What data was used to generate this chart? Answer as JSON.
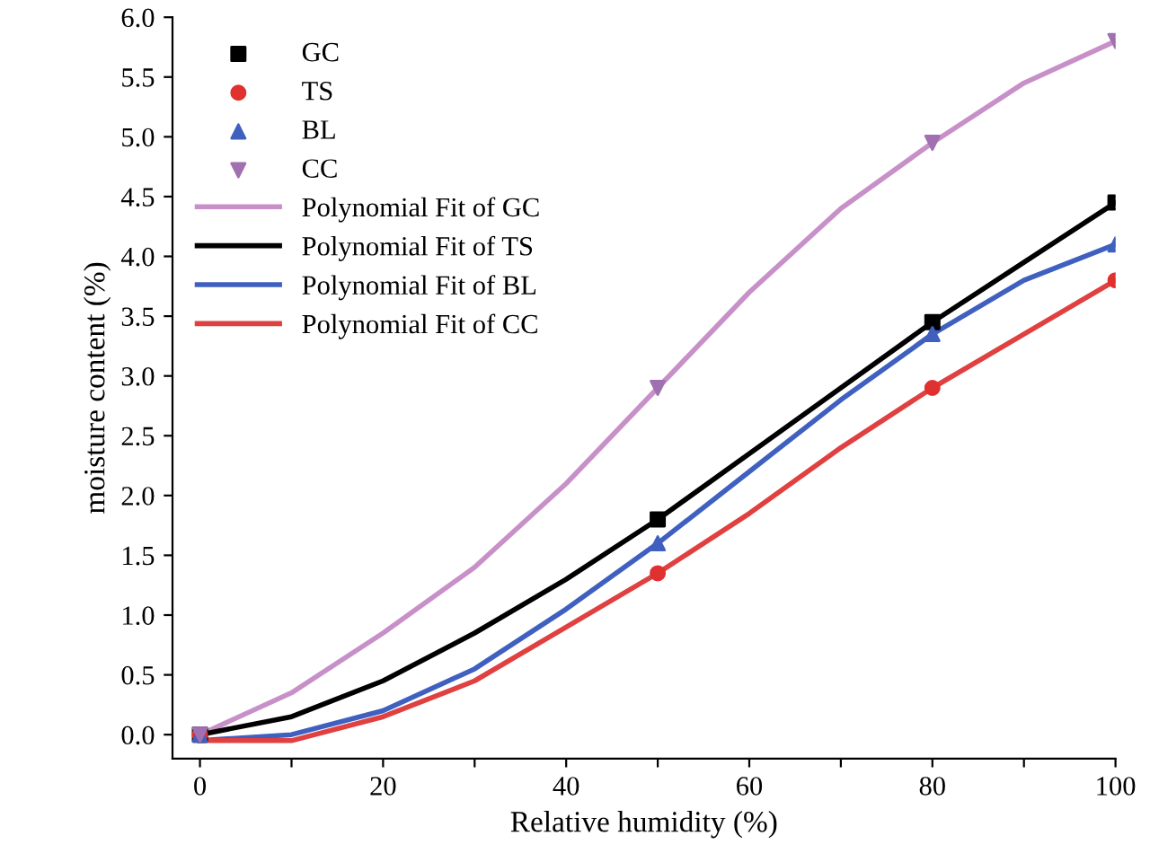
{
  "chart_data": {
    "type": "scatter",
    "xlabel": "Relative humidity (%)",
    "ylabel": "moisture content (%)",
    "xlim": [
      -3,
      100
    ],
    "ylim": [
      -0.2,
      6.0
    ],
    "xticks": [
      0,
      {
        "value": 10,
        "label": null
      },
      20,
      {
        "value": 30,
        "label": null
      },
      40,
      {
        "value": 50,
        "label": null
      },
      60,
      {
        "value": 70,
        "label": null
      },
      80,
      {
        "value": 90,
        "label": null
      },
      100
    ],
    "yticks": [
      {
        "value": 0,
        "label": "0.0"
      },
      {
        "value": 0.5,
        "label": "0.5"
      },
      {
        "value": 1,
        "label": "1.0"
      },
      {
        "value": 1.5,
        "label": "1.5"
      },
      {
        "value": 2,
        "label": "2.0"
      },
      {
        "value": 2.5,
        "label": "2.5"
      },
      {
        "value": 3,
        "label": "3.0"
      },
      {
        "value": 3.5,
        "label": "3.5"
      },
      {
        "value": 4,
        "label": "4.0"
      },
      {
        "value": 4.5,
        "label": "4.5"
      },
      {
        "value": 5,
        "label": "5.0"
      },
      {
        "value": 5.5,
        "label": "5.5"
      },
      {
        "value": 6,
        "label": "6.0"
      }
    ],
    "grid": false,
    "legend": "top left",
    "series": [
      {
        "name": "GC",
        "marker": "square",
        "color": "#000000",
        "x": [
          0,
          50,
          80,
          100
        ],
        "values": [
          0.0,
          1.8,
          3.45,
          4.45
        ]
      },
      {
        "name": "TS",
        "marker": "circle",
        "color": "#e03030",
        "x": [
          0,
          50,
          80,
          100
        ],
        "values": [
          0.0,
          1.35,
          2.9,
          3.8
        ]
      },
      {
        "name": "BL",
        "marker": "triangle",
        "color": "#4060c0",
        "x": [
          0,
          50,
          80,
          100
        ],
        "values": [
          0.0,
          1.6,
          3.35,
          4.1
        ]
      },
      {
        "name": "CC",
        "marker": "triangle_down",
        "color": "#a070b0",
        "x": [
          0,
          50,
          80,
          100
        ],
        "values": [
          0.0,
          2.9,
          4.95,
          5.8
        ]
      },
      {
        "name": "Polynomial Fit of GC",
        "type": "line",
        "color": "#c890c8",
        "x": [
          0,
          10,
          20,
          30,
          40,
          50,
          60,
          70,
          80,
          90,
          100
        ],
        "values": [
          0.0,
          0.35,
          0.85,
          1.4,
          2.1,
          2.9,
          3.7,
          4.4,
          4.95,
          5.45,
          5.8
        ]
      },
      {
        "name": "Polynomial Fit of TS",
        "type": "line",
        "color": "#000000",
        "x": [
          0,
          10,
          20,
          30,
          40,
          50,
          60,
          70,
          80,
          90,
          100
        ],
        "values": [
          0.0,
          0.15,
          0.45,
          0.85,
          1.3,
          1.8,
          2.35,
          2.9,
          3.45,
          3.95,
          4.45
        ]
      },
      {
        "name": "Polynomial Fit of BL",
        "type": "line",
        "color": "#4060c0",
        "x": [
          0,
          10,
          20,
          30,
          40,
          50,
          60,
          70,
          80,
          90,
          100
        ],
        "values": [
          -0.05,
          0.0,
          0.2,
          0.55,
          1.05,
          1.6,
          2.2,
          2.8,
          3.35,
          3.8,
          4.1
        ]
      },
      {
        "name": "Polynomial Fit of CC",
        "type": "line",
        "color": "#e04040",
        "x": [
          0,
          10,
          20,
          30,
          40,
          50,
          60,
          70,
          80,
          90,
          100
        ],
        "values": [
          -0.05,
          -0.05,
          0.15,
          0.45,
          0.9,
          1.35,
          1.85,
          2.4,
          2.9,
          3.35,
          3.8
        ]
      }
    ]
  }
}
